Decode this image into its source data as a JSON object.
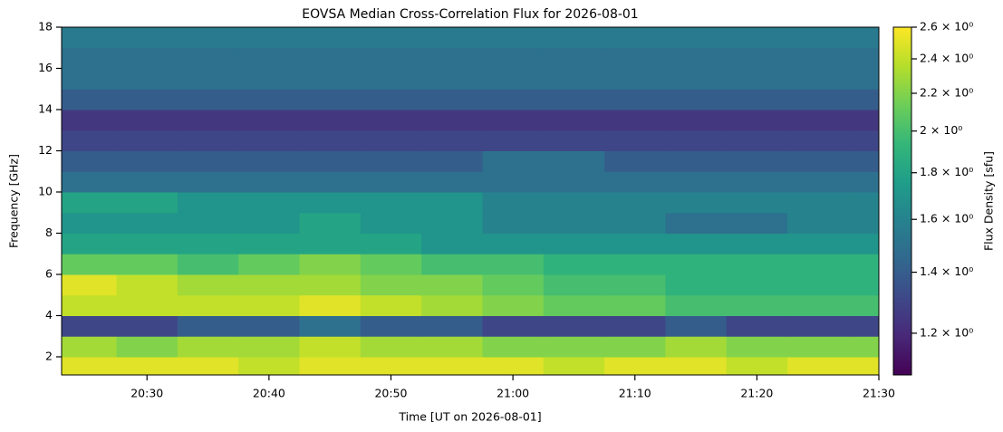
{
  "chart_data": {
    "type": "heatmap",
    "title": "EOVSA Median Cross-Correlation Flux for 2026-08-01",
    "x_label": "Time [UT on 2026-08-01]",
    "y_label": "Frequency [GHz]",
    "colorbar_label": "Flux Density [sfu]",
    "colormap": "viridis",
    "color_scale": "log",
    "xlim": [
      "20:23",
      "21:30"
    ],
    "xticks": [
      "20:30",
      "20:40",
      "20:50",
      "21:00",
      "21:10",
      "21:20",
      "21:30"
    ],
    "ylim": [
      1.12,
      18
    ],
    "yticks": [
      2,
      4,
      6,
      8,
      10,
      12,
      14,
      16,
      18
    ],
    "clim": [
      1.08,
      2.6
    ],
    "cticks": [
      {
        "value": 1.2,
        "label": "1.2 × 10⁰"
      },
      {
        "value": 1.4,
        "label": "1.4 × 10⁰"
      },
      {
        "value": 1.6,
        "label": "1.6 × 10⁰"
      },
      {
        "value": 1.8,
        "label": "1.8 × 10⁰"
      },
      {
        "value": 2,
        "label": "2 × 10⁰"
      },
      {
        "value": 2.2,
        "label": "2.2 × 10⁰"
      },
      {
        "value": 2.4,
        "label": "2.4 × 10⁰"
      },
      {
        "value": 2.6,
        "label": "2.6 × 10⁰"
      }
    ],
    "x": [
      "20:25",
      "20:30",
      "20:35",
      "20:40",
      "20:45",
      "20:50",
      "20:55",
      "21:00",
      "21:05",
      "21:10",
      "21:15",
      "21:20",
      "21:25",
      "21:30"
    ],
    "y": [
      1.5,
      2.5,
      3.5,
      4.5,
      5.5,
      6.5,
      7.5,
      8.5,
      9.5,
      10.5,
      11.5,
      12.5,
      13.5,
      14.5,
      15.5,
      16.5,
      17.5
    ],
    "z": [
      [
        2.5,
        2.5,
        2.5,
        2.4,
        2.5,
        2.5,
        2.5,
        2.5,
        2.4,
        2.5,
        2.5,
        2.4,
        2.5,
        2.5
      ],
      [
        2.3,
        2.2,
        2.3,
        2.3,
        2.4,
        2.3,
        2.3,
        2.2,
        2.2,
        2.2,
        2.3,
        2.2,
        2.2,
        2.2
      ],
      [
        1.3,
        1.3,
        1.4,
        1.4,
        1.5,
        1.4,
        1.4,
        1.3,
        1.3,
        1.3,
        1.4,
        1.3,
        1.3,
        1.3
      ],
      [
        2.4,
        2.4,
        2.4,
        2.4,
        2.5,
        2.4,
        2.3,
        2.2,
        2.1,
        2.1,
        2.0,
        2.0,
        2.0,
        2.0
      ],
      [
        2.5,
        2.4,
        2.3,
        2.3,
        2.3,
        2.2,
        2.2,
        2.1,
        2.0,
        2.0,
        1.9,
        1.9,
        1.9,
        1.9
      ],
      [
        2.1,
        2.1,
        2.0,
        2.1,
        2.2,
        2.1,
        2.0,
        2.0,
        1.9,
        1.9,
        1.9,
        1.9,
        1.9,
        1.9
      ],
      [
        1.8,
        1.8,
        1.8,
        1.8,
        1.8,
        1.8,
        1.7,
        1.7,
        1.7,
        1.7,
        1.7,
        1.7,
        1.7,
        1.7
      ],
      [
        1.7,
        1.7,
        1.7,
        1.7,
        1.8,
        1.7,
        1.7,
        1.6,
        1.6,
        1.6,
        1.5,
        1.5,
        1.6,
        1.6
      ],
      [
        1.8,
        1.8,
        1.7,
        1.7,
        1.7,
        1.7,
        1.7,
        1.6,
        1.6,
        1.6,
        1.6,
        1.6,
        1.6,
        1.6
      ],
      [
        1.5,
        1.5,
        1.5,
        1.5,
        1.5,
        1.5,
        1.5,
        1.5,
        1.5,
        1.5,
        1.5,
        1.5,
        1.5,
        1.5
      ],
      [
        1.4,
        1.4,
        1.4,
        1.4,
        1.4,
        1.4,
        1.4,
        1.5,
        1.5,
        1.4,
        1.4,
        1.4,
        1.4,
        1.4
      ],
      [
        1.3,
        1.3,
        1.3,
        1.3,
        1.3,
        1.3,
        1.3,
        1.3,
        1.3,
        1.3,
        1.3,
        1.3,
        1.3,
        1.3
      ],
      [
        1.25,
        1.25,
        1.25,
        1.25,
        1.25,
        1.25,
        1.25,
        1.25,
        1.25,
        1.25,
        1.25,
        1.25,
        1.25,
        1.25
      ],
      [
        1.4,
        1.4,
        1.4,
        1.4,
        1.4,
        1.4,
        1.4,
        1.4,
        1.4,
        1.4,
        1.4,
        1.4,
        1.4,
        1.4
      ],
      [
        1.5,
        1.5,
        1.5,
        1.5,
        1.5,
        1.5,
        1.5,
        1.5,
        1.5,
        1.5,
        1.5,
        1.5,
        1.5,
        1.5
      ],
      [
        1.5,
        1.5,
        1.5,
        1.5,
        1.5,
        1.5,
        1.5,
        1.5,
        1.5,
        1.5,
        1.5,
        1.5,
        1.5,
        1.5
      ],
      [
        1.55,
        1.55,
        1.55,
        1.55,
        1.55,
        1.55,
        1.55,
        1.55,
        1.55,
        1.55,
        1.55,
        1.55,
        1.55,
        1.55
      ]
    ]
  }
}
